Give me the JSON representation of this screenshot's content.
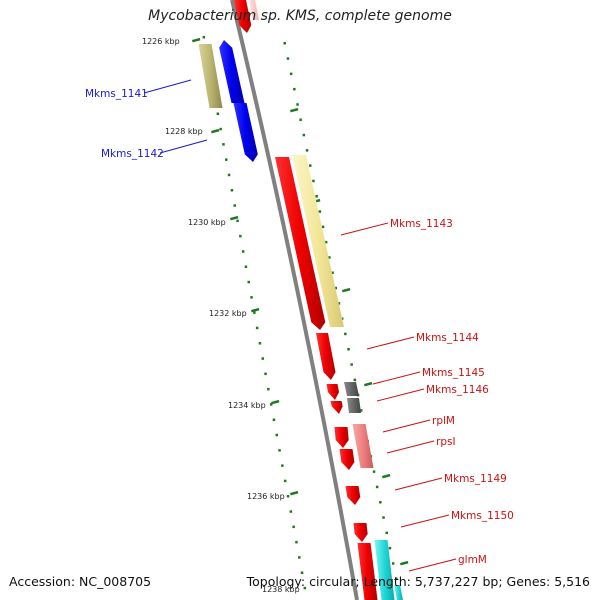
{
  "title": "Mycobacterium sp. KMS, complete genome",
  "footer": {
    "accession": "Accession: NC_008705",
    "topology": "Topology: circular; Length: 5,737,227 bp; Genes: 5,516"
  },
  "colors": {
    "backbone": "#808080",
    "tick": "#1f7a1f",
    "blue_label": "#1a1acc",
    "red_label": "#cc1111"
  },
  "scale_labels": [
    {
      "text": "1226 kbp",
      "kbp": 1226
    },
    {
      "text": "1228 kbp",
      "kbp": 1228
    },
    {
      "text": "1230 kbp",
      "kbp": 1230
    },
    {
      "text": "1232 kbp",
      "kbp": 1232
    },
    {
      "text": "1234 kbp",
      "kbp": 1234
    },
    {
      "text": "1236 kbp",
      "kbp": 1236
    },
    {
      "text": "1238 kbp",
      "kbp": 1238
    }
  ],
  "gene_labels": [
    {
      "text": "Mkms_1141",
      "color": "#1a1acc"
    },
    {
      "text": "Mkms_1142",
      "color": "#1a1acc"
    },
    {
      "text": "Mkms_1143",
      "color": "#cc1111"
    },
    {
      "text": "Mkms_1144",
      "color": "#cc1111"
    },
    {
      "text": "Mkms_1145",
      "color": "#cc1111"
    },
    {
      "text": "Mkms_1146",
      "color": "#cc1111"
    },
    {
      "text": "rplM",
      "color": "#cc1111"
    },
    {
      "text": "rpsI",
      "color": "#cc1111"
    },
    {
      "text": "Mkms_1149",
      "color": "#cc1111"
    },
    {
      "text": "Mkms_1150",
      "color": "#cc1111"
    },
    {
      "text": "glmM",
      "color": "#cc1111"
    }
  ]
}
